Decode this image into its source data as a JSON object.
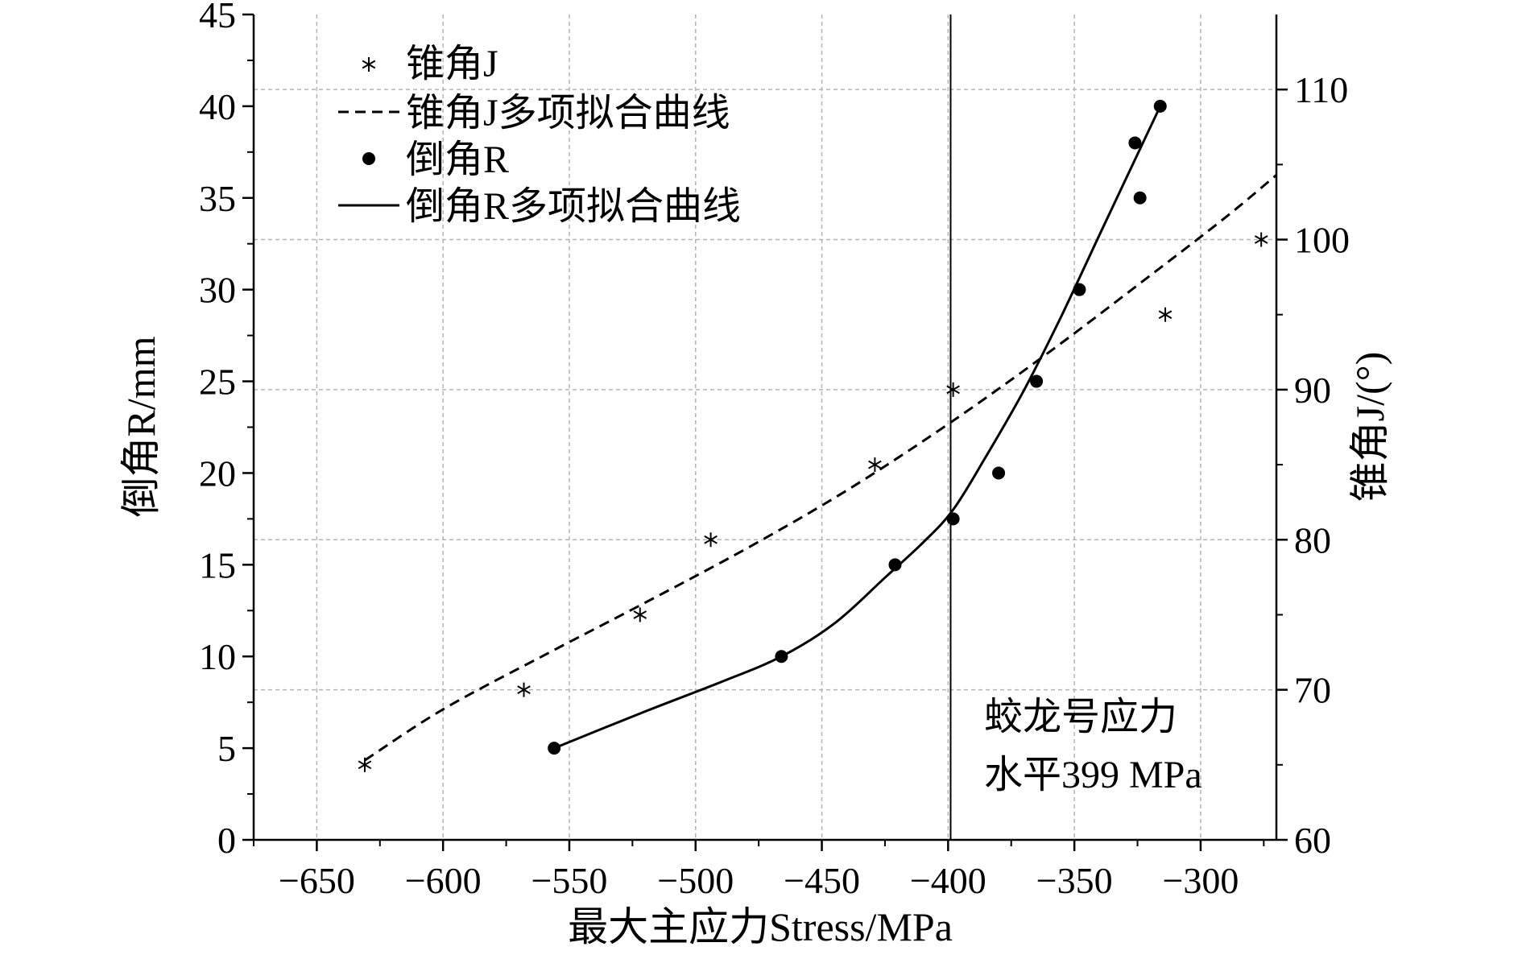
{
  "chart_data": {
    "type": "scatter",
    "xlabel": "最大主应力Stress/MPa",
    "ylabel_left": "倒角R/mm",
    "ylabel_right": "锥角J/(°)",
    "xlim": [
      -675,
      -270
    ],
    "ylim_left": [
      0,
      45
    ],
    "ylim_right": [
      60,
      115
    ],
    "x_ticks": [
      -650,
      -600,
      -550,
      -500,
      -450,
      -400,
      -350,
      -300
    ],
    "x_tick_labels": [
      "−650",
      "−600",
      "−550",
      "−500",
      "−450",
      "−400",
      "−350",
      "−300"
    ],
    "y_left_ticks": [
      0,
      5,
      10,
      15,
      20,
      25,
      30,
      35,
      40,
      45
    ],
    "y_left_tick_labels": [
      "0",
      "5",
      "10",
      "15",
      "20",
      "25",
      "30",
      "35",
      "40",
      "45"
    ],
    "y_right_ticks": [
      60,
      70,
      80,
      90,
      100,
      110
    ],
    "y_right_tick_labels": [
      "60",
      "70",
      "80",
      "90",
      "100",
      "110"
    ],
    "grid": true,
    "legend_position": "top-left",
    "series": [
      {
        "name": "锥角J",
        "axis": "right",
        "style": "asterisk",
        "x": [
          -631,
          -568,
          -522,
          -494,
          -429,
          -398,
          -314,
          -276
        ],
        "y": [
          65,
          70,
          75,
          80,
          85,
          90,
          95,
          100
        ]
      },
      {
        "name": "锥角J多项拟合曲线",
        "axis": "right",
        "style": "dashed-line",
        "x": [
          -631,
          -600,
          -560,
          -520,
          -480,
          -440,
          -400,
          -360,
          -320,
          -290,
          -270
        ],
        "y": [
          65.3,
          68.7,
          72.3,
          75.8,
          79.4,
          83.3,
          87.7,
          92.5,
          97.6,
          101.5,
          104.3
        ]
      },
      {
        "name": "倒角R",
        "axis": "left",
        "style": "filled-circle",
        "x": [
          -556,
          -466,
          -421,
          -398,
          -380,
          -365,
          -348,
          -326,
          -324,
          -316
        ],
        "y": [
          5,
          10,
          15,
          17.5,
          20,
          25,
          30,
          38,
          35,
          40
        ]
      },
      {
        "name": "倒角R多项拟合曲线",
        "axis": "left",
        "style": "solid-line",
        "x": [
          -556,
          -520,
          -490,
          -466,
          -445,
          -425,
          -410,
          -398,
          -385,
          -370,
          -355,
          -340,
          -328,
          -316
        ],
        "y": [
          5,
          7,
          8.6,
          10,
          11.8,
          14.3,
          16.2,
          18,
          20.9,
          24.5,
          28.6,
          33,
          36.5,
          40
        ]
      }
    ],
    "reference_line": {
      "x": -399
    },
    "annotation": {
      "lines": [
        "蛟龙号应力",
        "水平399 MPa"
      ]
    }
  }
}
